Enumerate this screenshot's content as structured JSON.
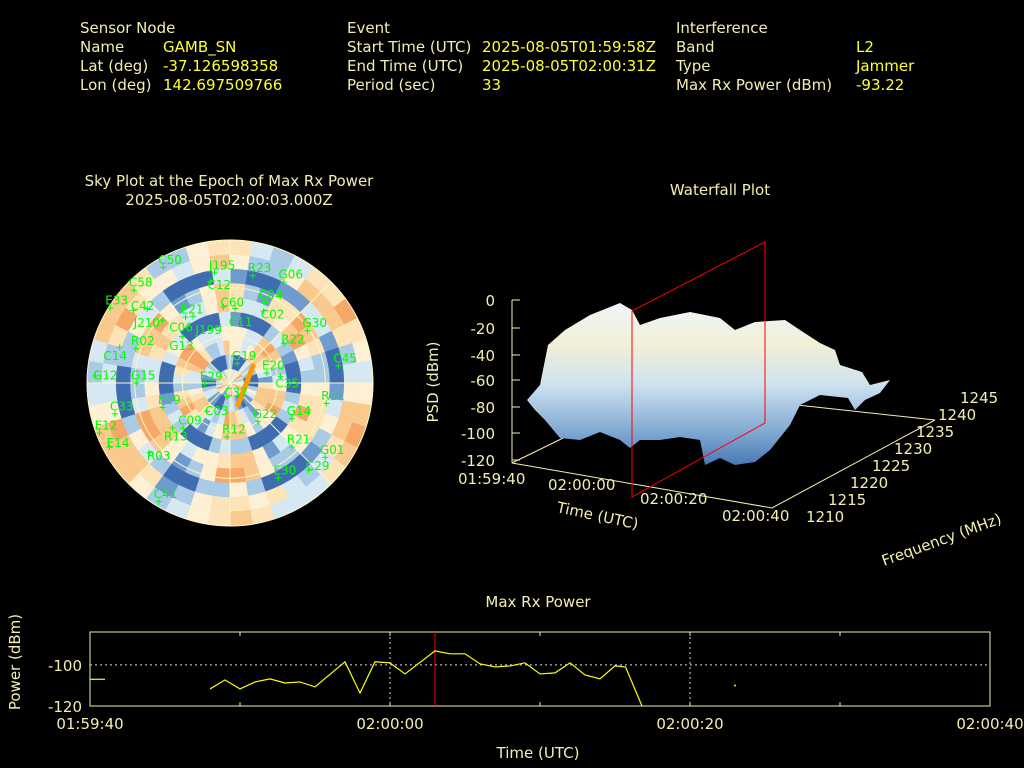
{
  "header": {
    "sensor": {
      "title": "Sensor Node",
      "name_label": "Name",
      "name": "GAMB_SN",
      "lat_label": "Lat (deg)",
      "lat": "-37.126598358",
      "lon_label": "Lon (deg)",
      "lon": "142.697509766"
    },
    "event": {
      "title": "Event",
      "start_label": "Start Time (UTC)",
      "start": "2025-08-05T01:59:58Z",
      "end_label": "End Time (UTC)",
      "end": "2025-08-05T02:00:31Z",
      "period_label": "Period (sec)",
      "period": "33"
    },
    "interference": {
      "title": "Interference",
      "band_label": "Band",
      "band": "L2",
      "type_label": "Type",
      "type": "Jammer",
      "power_label": "Max Rx Power (dBm)",
      "power": "-93.22"
    }
  },
  "colors": {
    "label": "#f2eeb0",
    "value": "#ffff33",
    "satellite": "#00ff00",
    "cursor": "#ff0000",
    "trace": "#ffff00",
    "jammer": "#ff9900"
  },
  "chart_data": [
    {
      "type": "polar-heatmap",
      "title": "Sky Plot at the Epoch of Max Rx Power",
      "subtitle": "2025-08-05T02:00:03.000Z",
      "grid": true,
      "satellites": [
        {
          "id": "C50",
          "az": 330,
          "el": 6
        },
        {
          "id": "J195",
          "az": 352,
          "el": 20
        },
        {
          "id": "C12",
          "az": 349,
          "el": 25
        },
        {
          "id": "R23",
          "az": 12,
          "el": 21
        },
        {
          "id": "G06",
          "az": 28,
          "el": 18
        },
        {
          "id": "C58",
          "az": 314,
          "el": 6
        },
        {
          "id": "E33",
          "az": 302,
          "el": 1
        },
        {
          "id": "C42",
          "az": 307,
          "el": 14
        },
        {
          "id": "J210",
          "az": 312,
          "el": 20
        },
        {
          "id": "E21",
          "az": 326,
          "el": 40
        },
        {
          "id": "C06",
          "az": 313,
          "el": 32
        },
        {
          "id": "J199",
          "az": 331,
          "el": 42
        },
        {
          "id": "C60",
          "az": 355,
          "el": 42
        },
        {
          "id": "C11",
          "az": 4,
          "el": 43
        },
        {
          "id": "C04",
          "az": 23,
          "el": 35
        },
        {
          "id": "C02",
          "az": 25,
          "el": 40
        },
        {
          "id": "G13",
          "az": 314,
          "el": 48
        },
        {
          "id": "G30",
          "az": 56,
          "el": 31
        },
        {
          "id": "R22",
          "az": 54,
          "el": 48
        },
        {
          "id": "R02",
          "az": 290,
          "el": 27
        },
        {
          "id": "C14",
          "az": 288,
          "el": 17
        },
        {
          "id": "G12",
          "az": 273,
          "el": 5
        },
        {
          "id": "G15",
          "az": 270,
          "el": 31
        },
        {
          "id": "G19",
          "az": 20,
          "el": 77
        },
        {
          "id": "E29",
          "az": 268,
          "el": 74
        },
        {
          "id": "E20",
          "az": 75,
          "el": 66
        },
        {
          "id": "C35",
          "az": 83,
          "el": 58
        },
        {
          "id": "C45",
          "az": 81,
          "el": 21
        },
        {
          "id": "C37",
          "az": 192,
          "el": 81
        },
        {
          "id": "R11",
          "az": 102,
          "el": 28
        },
        {
          "id": "C33",
          "az": 255,
          "el": 15
        },
        {
          "id": "E19",
          "az": 250,
          "el": 45
        },
        {
          "id": "C03",
          "az": 219,
          "el": 67
        },
        {
          "id": "C09",
          "az": 226,
          "el": 49
        },
        {
          "id": "G22",
          "az": 144,
          "el": 60
        },
        {
          "id": "G14",
          "az": 120,
          "el": 45
        },
        {
          "id": "R12",
          "az": 183,
          "el": 56
        },
        {
          "id": "E12",
          "az": 249,
          "el": 2
        },
        {
          "id": "E14",
          "az": 242,
          "el": 4
        },
        {
          "id": "R13",
          "az": 232,
          "el": 44
        },
        {
          "id": "R03",
          "az": 229,
          "el": 23
        },
        {
          "id": "R21",
          "az": 136,
          "el": 34
        },
        {
          "id": "G01",
          "az": 128,
          "el": 14
        },
        {
          "id": "C29",
          "az": 138,
          "el": 16
        },
        {
          "id": "E30",
          "az": 153,
          "el": 23
        },
        {
          "id": "C41",
          "az": 211,
          "el": 3
        }
      ]
    },
    {
      "type": "surface3d",
      "title": "Waterfall Plot",
      "xlabel": "Time (UTC)",
      "ylabel": "Frequency (MHz)",
      "zlabel": "PSD (dBm)",
      "x_ticks": [
        "01:59:40",
        "02:00:00",
        "02:00:20",
        "02:00:40"
      ],
      "y_ticks": [
        "1210",
        "1215",
        "1220",
        "1225",
        "1230",
        "1235",
        "1240",
        "1245"
      ],
      "z_ticks": [
        "0",
        "-20",
        "-40",
        "-60",
        "-80",
        "-100",
        "-120"
      ],
      "zlim": [
        -120,
        0
      ],
      "cursor_time": "02:00:03"
    },
    {
      "type": "line",
      "title": "Max Rx Power",
      "xlabel": "Time (UTC)",
      "ylabel": "Power (dBm)",
      "x_ticks": [
        "01:59:40",
        "02:00:00",
        "02:00:20",
        "02:00:40"
      ],
      "y_ticks": [
        "-100",
        "-120"
      ],
      "xlim_seconds_after_015940": [
        0,
        60
      ],
      "ylim": [
        -120,
        -84
      ],
      "grid": true,
      "cursor_seconds": 23,
      "series": [
        {
          "x": [
            0,
            1
          ],
          "y": [
            -107,
            -107
          ]
        },
        {
          "x": [
            8,
            9,
            10,
            11,
            12,
            13,
            14,
            15,
            17,
            18,
            19,
            20,
            21,
            23,
            24,
            25,
            26,
            27,
            28,
            29,
            30,
            31,
            32,
            33,
            34,
            35,
            35.7,
            36.8
          ],
          "y": [
            -111.7,
            -107.3,
            -111.7,
            -108.3,
            -106.8,
            -108.8,
            -108.3,
            -110.7,
            -98.5,
            -113.7,
            -98.5,
            -99,
            -104.4,
            -93.2,
            -94.6,
            -94.6,
            -99.5,
            -101,
            -100.5,
            -99,
            -104.4,
            -103.9,
            -99,
            -104.9,
            -106.8,
            -100.5,
            -101,
            -120
          ]
        },
        {
          "x": [
            43
          ],
          "y": [
            -110
          ]
        }
      ]
    }
  ]
}
